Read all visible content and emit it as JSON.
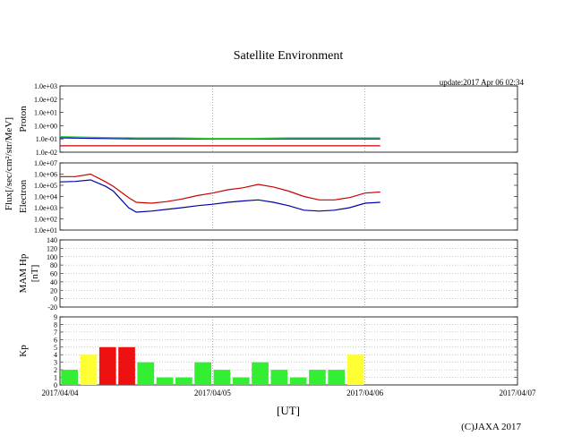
{
  "title": "Satellite Environment",
  "update_text": "update:2017 Apr 06 02:34",
  "copyright": "(C)JAXA 2017",
  "xlabel": "[UT]",
  "flux_label": "Flux[/sec/cm²/str/MeV]",
  "x_ticks": [
    "2017/04/04",
    "2017/04/05",
    "2017/04/06",
    "2017/04/07"
  ],
  "colors": {
    "proton_blue": "#0000cc",
    "proton_green": "#33cc33",
    "proton_red": "#cc0000",
    "electron_red": "#cc0000",
    "electron_blue": "#0000aa",
    "kp_green": "#33ee33",
    "kp_yellow": "#ffff33",
    "kp_red": "#ee1111"
  },
  "chart_data": [
    {
      "type": "line",
      "ylabel": "Proton",
      "yscale": "log",
      "ylim": [
        0.01,
        1000
      ],
      "yticks": [
        "1.0e-02",
        "1.0e-01",
        "1.0e+00",
        "1.0e+01",
        "1.0e+02",
        "1.0e+03"
      ],
      "xlim": [
        0,
        3
      ],
      "series": [
        {
          "x": [
            0,
            0.25,
            0.5,
            0.75,
            1.0,
            1.25,
            1.5,
            1.75,
            2.1
          ],
          "values": [
            0.12,
            0.11,
            0.1,
            0.1,
            0.1,
            0.1,
            0.1,
            0.1,
            0.1
          ]
        },
        {
          "x": [
            0,
            0.25,
            0.5,
            0.75,
            1.0,
            1.25,
            1.5,
            1.75,
            2.1
          ],
          "values": [
            0.15,
            0.13,
            0.12,
            0.12,
            0.11,
            0.11,
            0.12,
            0.12,
            0.12
          ]
        },
        {
          "x": [
            0,
            0.25,
            0.5,
            0.75,
            1.0,
            1.25,
            1.5,
            1.75,
            2.1
          ],
          "values": [
            0.03,
            0.03,
            0.03,
            0.03,
            0.03,
            0.03,
            0.03,
            0.03,
            0.03
          ]
        }
      ]
    },
    {
      "type": "line",
      "ylabel": "Electron",
      "yscale": "log",
      "ylim": [
        10,
        10000000
      ],
      "yticks": [
        "1.0e+01",
        "1.0e+02",
        "1.0e+03",
        "1.0e+04",
        "1.0e+05",
        "1.0e+06",
        "1.0e+07"
      ],
      "xlim": [
        0,
        3
      ],
      "series": [
        {
          "x": [
            0,
            0.1,
            0.2,
            0.3,
            0.35,
            0.45,
            0.5,
            0.6,
            0.7,
            0.8,
            0.9,
            1.0,
            1.1,
            1.2,
            1.3,
            1.4,
            1.5,
            1.6,
            1.7,
            1.8,
            1.9,
            2.0,
            2.1
          ],
          "values": [
            600000,
            600000,
            1000000,
            200000,
            80000,
            8000,
            3000,
            2500,
            3500,
            6000,
            12000,
            20000,
            40000,
            60000,
            120000,
            70000,
            30000,
            10000,
            5000,
            5000,
            8000,
            20000,
            25000
          ]
        },
        {
          "x": [
            0,
            0.1,
            0.2,
            0.3,
            0.35,
            0.45,
            0.5,
            0.6,
            0.7,
            0.8,
            0.9,
            1.0,
            1.1,
            1.2,
            1.3,
            1.4,
            1.5,
            1.6,
            1.7,
            1.8,
            1.9,
            2.0,
            2.1
          ],
          "values": [
            200000,
            220000,
            300000,
            80000,
            30000,
            1000,
            400,
            500,
            700,
            1000,
            1500,
            2000,
            3000,
            4000,
            5000,
            3000,
            1500,
            600,
            500,
            600,
            1000,
            2500,
            3000
          ]
        }
      ]
    },
    {
      "type": "bar",
      "ylabel": "MAM Hp",
      "unit": "[nT]",
      "ylim": [
        -20,
        140
      ],
      "yticks": [
        "-20",
        "0",
        "20",
        "40",
        "60",
        "80",
        "100",
        "120",
        "140"
      ],
      "xlim": [
        0,
        3
      ],
      "values": []
    },
    {
      "type": "bar",
      "ylabel": "Kp",
      "ylim": [
        0,
        9
      ],
      "yticks": [
        "0",
        "1",
        "2",
        "3",
        "4",
        "5",
        "6",
        "7",
        "8",
        "9"
      ],
      "xlim": [
        0,
        3
      ],
      "bar_width": 0.125,
      "x": [
        0,
        0.125,
        0.25,
        0.375,
        0.5,
        0.625,
        0.75,
        0.875,
        1.0,
        1.125,
        1.25,
        1.375,
        1.5,
        1.625,
        1.75,
        1.875,
        2.0
      ],
      "values": [
        2,
        4,
        5,
        5,
        3,
        1,
        1,
        3,
        2,
        1,
        3,
        2,
        1,
        2,
        2,
        4,
        0
      ]
    }
  ]
}
